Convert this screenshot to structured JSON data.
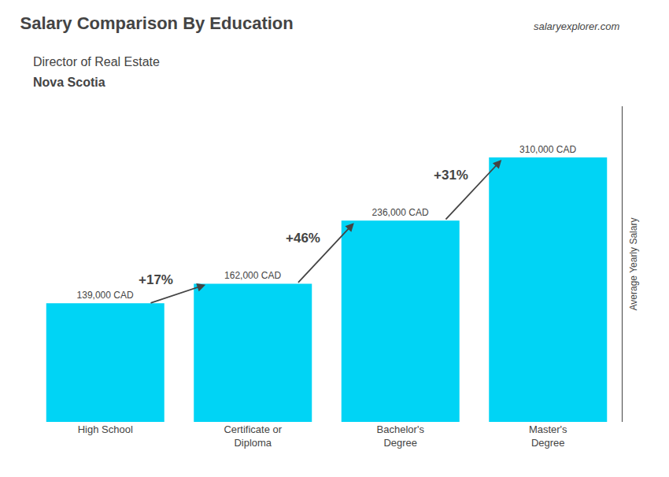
{
  "chart_data": {
    "type": "bar",
    "title": "Salary Comparison By Education",
    "subtitle": "Director of Real Estate",
    "location": "Nova Scotia",
    "website": "salaryexplorer.com",
    "ylabel": "Average Yearly Salary",
    "categories": [
      "High School",
      "Certificate or\nDiploma",
      "Bachelor's\nDegree",
      "Master's\nDegree"
    ],
    "values": [
      139000,
      162000,
      236000,
      310000
    ],
    "value_labels": [
      "139,000 CAD",
      "162,000 CAD",
      "236,000 CAD",
      "310,000 CAD"
    ],
    "data_labels": true,
    "annotations": [
      "+17%",
      "+46%",
      "+31%"
    ],
    "color": "#00d4f5",
    "ylim": [
      0,
      370000
    ],
    "tick_labels": "x",
    "grid": false
  }
}
